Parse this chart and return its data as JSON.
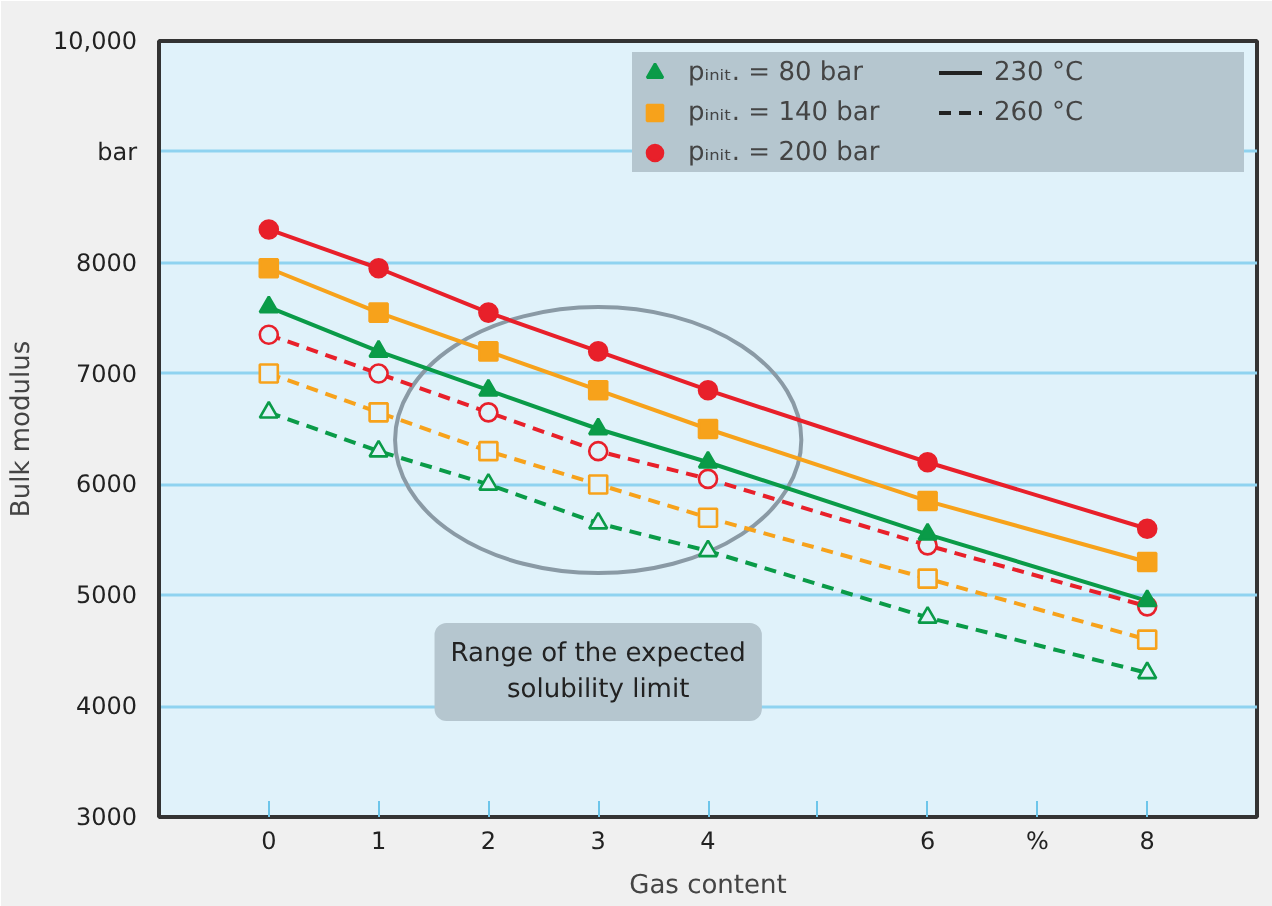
{
  "chart_data": {
    "type": "line",
    "xlabel": "Gas content",
    "ylabel": "Bulk modulus",
    "x": [
      0,
      1,
      2,
      3,
      4,
      6,
      8
    ],
    "xlim": [
      -1,
      9
    ],
    "xticks": [
      0,
      1,
      2,
      3,
      4,
      {
        "value": 5,
        "label": null
      },
      6,
      {
        "value": 7,
        "label": "%"
      },
      8
    ],
    "ylim": [
      3000,
      10000
    ],
    "yticks": [
      3000,
      4000,
      5000,
      6000,
      7000,
      8000,
      {
        "value": 9000,
        "label": "bar"
      },
      {
        "value": 10000,
        "label": "10,000"
      }
    ],
    "grid": "y",
    "legend": "top right",
    "series": [
      {
        "name": "pᵢₙᵢₜ. = 80 bar",
        "color": "#0a9b48",
        "marker": "triangle",
        "line_style": "solid",
        "values": [
          7600,
          7200,
          6850,
          6500,
          6200,
          5550,
          4950
        ]
      },
      {
        "name": "pᵢₙᵢₜ. = 140 bar",
        "color": "#f7a21b",
        "marker": "square",
        "line_style": "solid",
        "values": [
          7950,
          7550,
          7200,
          6850,
          6500,
          5850,
          5300
        ]
      },
      {
        "name": "pᵢₙᵢₜ. = 200 bar",
        "color": "#e8202a",
        "marker": "circle",
        "line_style": "solid",
        "values": [
          8300,
          7950,
          7550,
          7200,
          6850,
          6200,
          5600
        ]
      },
      {
        "color": "#0a9b48",
        "marker": "triangle",
        "line_style": "dashed",
        "values": [
          6650,
          6300,
          6000,
          5650,
          5400,
          4800,
          4300
        ]
      },
      {
        "color": "#f7a21b",
        "marker": "square",
        "line_style": "dashed",
        "values": [
          7000,
          6650,
          6300,
          6000,
          5700,
          5150,
          4600
        ]
      },
      {
        "color": "#e8202a",
        "marker": "circle",
        "line_style": "dashed",
        "values": [
          7350,
          7000,
          6650,
          6300,
          6050,
          5450,
          4900
        ]
      }
    ],
    "annotations": [
      "Range of the expected\nsolubility limit",
      "230 °C",
      "260 °C"
    ]
  }
}
